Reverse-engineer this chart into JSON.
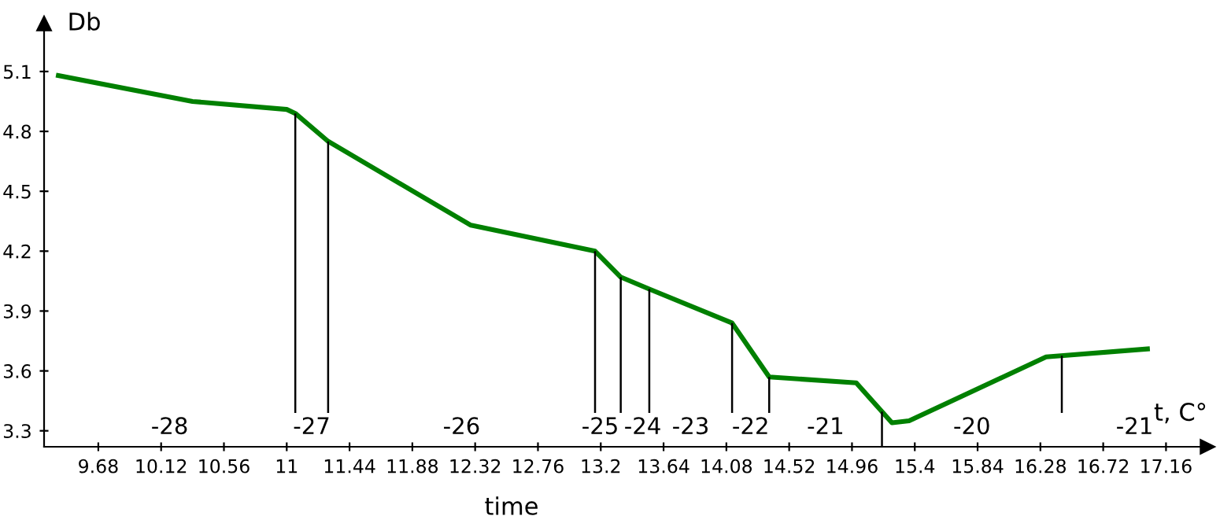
{
  "chart_data": {
    "type": "line",
    "xlabel": "time",
    "ylabel": "Db",
    "x": [
      9.4,
      10.34,
      11.0,
      11.06,
      11.29,
      12.29,
      13.16,
      13.34,
      13.54,
      14.12,
      14.38,
      14.99,
      15.24,
      15.36,
      16.32,
      17.03
    ],
    "series": [
      {
        "color": "#008000",
        "values": [
          5.08,
          4.95,
          4.91,
          4.89,
          4.75,
          4.33,
          4.2,
          4.07,
          4.01,
          3.84,
          3.57,
          3.54,
          3.34,
          3.35,
          3.67,
          3.71
        ]
      }
    ],
    "xlim": [
      9.3,
      17.45
    ],
    "ylim": [
      3.22,
      5.34
    ],
    "xticks": [
      9.68,
      10.12,
      10.56,
      11,
      11.44,
      11.88,
      12.32,
      12.76,
      13.2,
      13.64,
      14.08,
      14.52,
      14.96,
      15.4,
      15.84,
      16.28,
      16.72,
      17.16
    ],
    "yticks": [
      3.3,
      3.6,
      3.9,
      4.2,
      4.5,
      4.8,
      5.1
    ],
    "ref_lines": [
      {
        "axis": "x",
        "value": 11.06,
        "color": "#000000"
      },
      {
        "axis": "x",
        "value": 11.29,
        "color": "#000000"
      },
      {
        "axis": "x",
        "value": 13.16,
        "color": "#000000"
      },
      {
        "axis": "x",
        "value": 13.34,
        "color": "#000000"
      },
      {
        "axis": "x",
        "value": 13.54,
        "color": "#000000"
      },
      {
        "axis": "x",
        "value": 14.12,
        "color": "#000000"
      },
      {
        "axis": "x",
        "value": 14.38,
        "color": "#000000"
      },
      {
        "axis": "x",
        "value": 15.17,
        "color": "#000000"
      },
      {
        "axis": "x",
        "value": 16.43,
        "color": "#000000"
      }
    ],
    "annotations": [
      "-28",
      "-27",
      "-26",
      "-25",
      "-24",
      "-23",
      "-22",
      "-21",
      "-20",
      "-21",
      "t, C°"
    ],
    "grid": false,
    "legend": false,
    "marker": "none",
    "line_style": "solid"
  }
}
